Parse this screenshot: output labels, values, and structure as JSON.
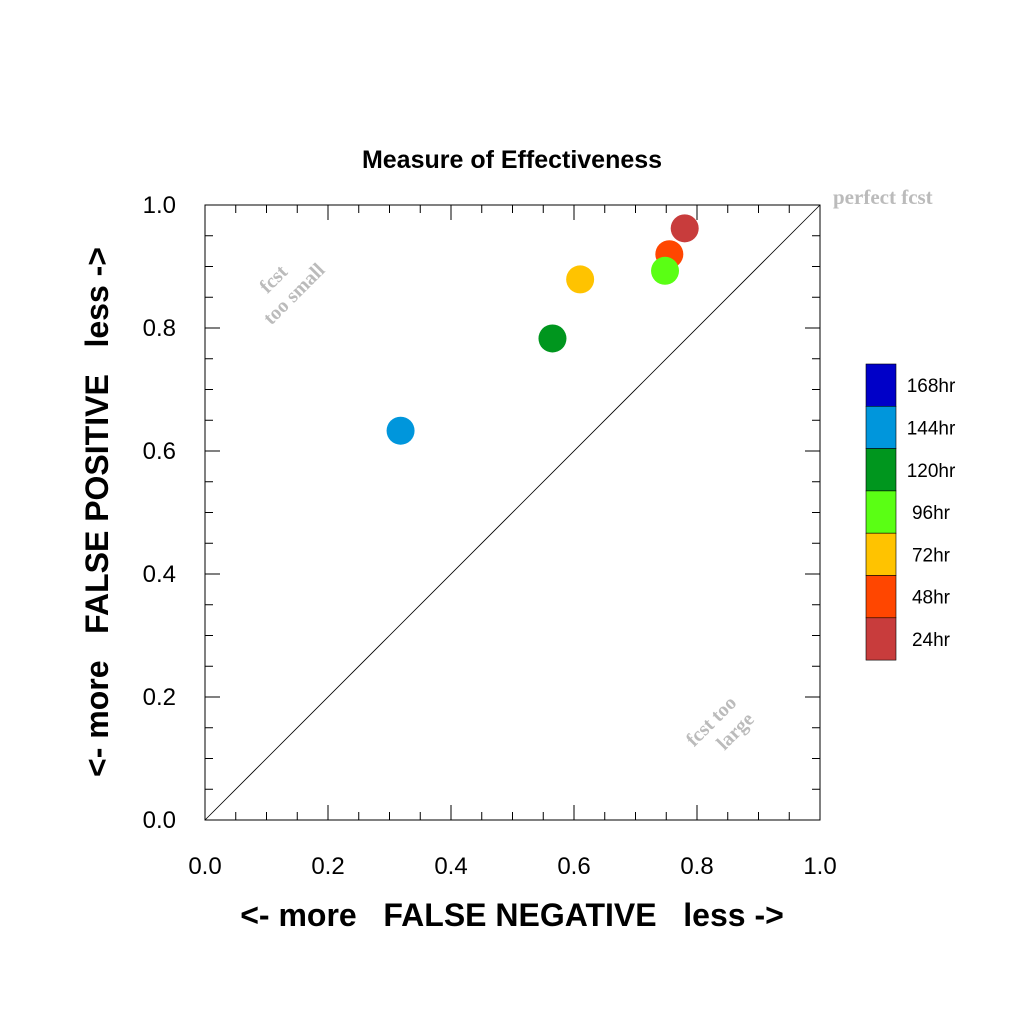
{
  "chart_data": {
    "type": "scatter",
    "title": "Measure of Effectiveness",
    "xlabel": "<- more   FALSE NEGATIVE   less ->",
    "ylabel": "<- more   FALSE POSITIVE   less ->",
    "xlim": [
      0.0,
      1.0
    ],
    "ylim": [
      0.0,
      1.0
    ],
    "x_ticks": [
      "0.0",
      "0.2",
      "0.4",
      "0.6",
      "0.8",
      "1.0"
    ],
    "y_ticks": [
      "0.0",
      "0.2",
      "0.4",
      "0.6",
      "0.8",
      "1.0"
    ],
    "grid": false,
    "diagonal_line": true,
    "annotations": {
      "perfect": "perfect fcst",
      "too_small": [
        "fcst",
        "too small"
      ],
      "too_large": [
        "fcst too",
        "large"
      ]
    },
    "legend_position": "right",
    "legend": [
      {
        "label": "168hr",
        "color": "#0000c8"
      },
      {
        "label": "144hr",
        "color": "#0096dc"
      },
      {
        "label": "120hr",
        "color": "#00961e"
      },
      {
        "label": "96hr",
        "color": "#5aff14"
      },
      {
        "label": "72hr",
        "color": "#ffc300"
      },
      {
        "label": "48hr",
        "color": "#ff4600"
      },
      {
        "label": "24hr",
        "color": "#c83c3c"
      }
    ],
    "points": [
      {
        "series": "144hr",
        "x": 0.318,
        "y": 0.633,
        "color": "#0096dc"
      },
      {
        "series": "120hr",
        "x": 0.565,
        "y": 0.783,
        "color": "#00961e"
      },
      {
        "series": "72hr",
        "x": 0.61,
        "y": 0.879,
        "color": "#ffc300"
      },
      {
        "series": "48hr",
        "x": 0.755,
        "y": 0.92,
        "color": "#ff4600"
      },
      {
        "series": "96hr",
        "x": 0.748,
        "y": 0.893,
        "color": "#5aff14"
      },
      {
        "series": "24hr",
        "x": 0.78,
        "y": 0.962,
        "color": "#c83c3c"
      }
    ]
  }
}
